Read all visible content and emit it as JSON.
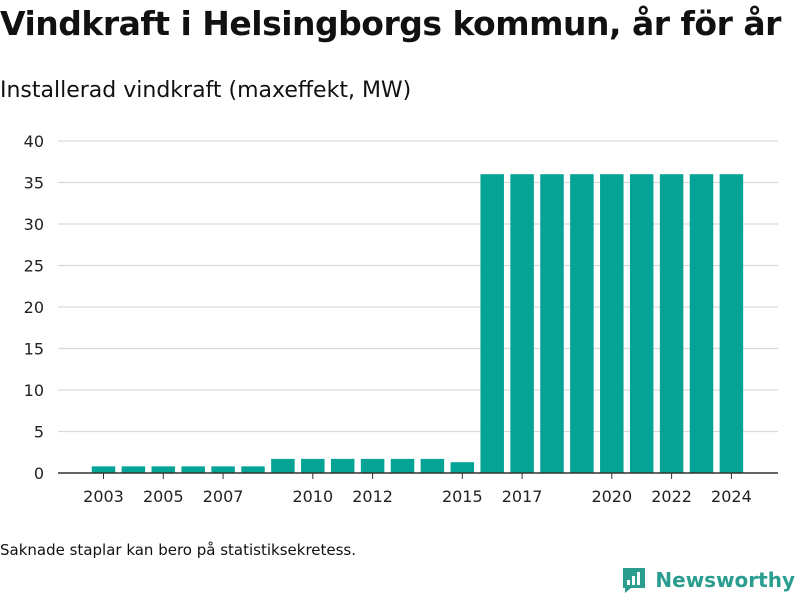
{
  "title": "Vindkraft i Helsingborgs kommun, år för år",
  "footnote": "Saknade staplar kan bero på statistiksekretess.",
  "brand": {
    "name": "Newsworthy",
    "icon": "newsworthy-logo-icon"
  },
  "colors": {
    "bar": "#04a396",
    "grid": "#d9d9d9",
    "axis": "#333333",
    "brand": "#2a9d8f"
  },
  "chart_data": {
    "type": "bar",
    "title": "Installerad vindkraft (maxeffekt, MW)",
    "xlabel": "",
    "ylabel": "",
    "ylim": [
      0,
      40
    ],
    "yticks": [
      0,
      5,
      10,
      15,
      20,
      25,
      30,
      35,
      40
    ],
    "grid": true,
    "categories": [
      "2003",
      "2004",
      "2005",
      "2006",
      "2007",
      "2008",
      "2009",
      "2010",
      "2011",
      "2012",
      "2013",
      "2014",
      "2015",
      "2016",
      "2017",
      "2018",
      "2019",
      "2020",
      "2021",
      "2022",
      "2023",
      "2024"
    ],
    "xtick_labels": [
      "2003",
      "2005",
      "2007",
      "2010",
      "2012",
      "2015",
      "2017",
      "2020",
      "2022",
      "2024"
    ],
    "values": [
      0.8,
      0.8,
      0.8,
      0.8,
      0.8,
      0.8,
      1.7,
      1.7,
      1.7,
      1.7,
      1.7,
      1.7,
      1.3,
      36,
      36,
      36,
      36,
      36,
      36,
      36,
      36,
      36
    ]
  }
}
